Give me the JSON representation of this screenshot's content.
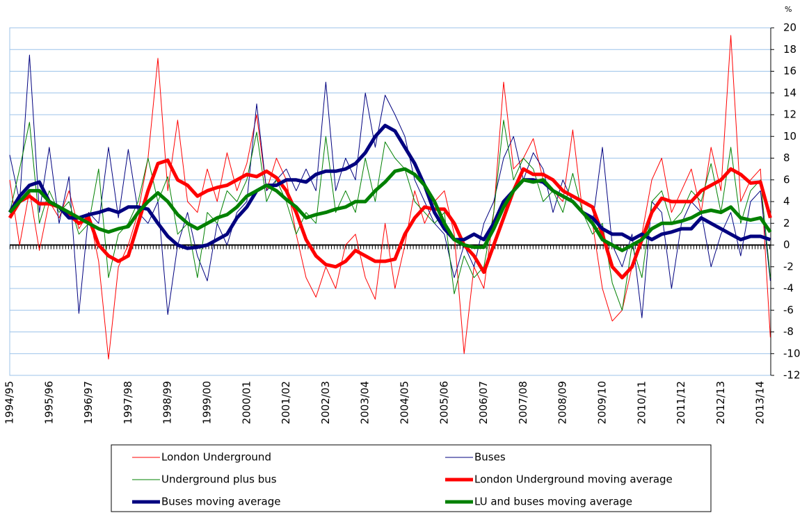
{
  "chart_data": {
    "type": "line",
    "y_unit": "%",
    "categories": [
      "1994/95",
      null,
      null,
      null,
      "1995/96",
      null,
      null,
      null,
      "1996/97",
      null,
      null,
      null,
      "1997/98",
      null,
      null,
      null,
      "1998/99",
      null,
      null,
      null,
      "1999/00",
      null,
      null,
      null,
      "2000/01",
      null,
      null,
      null,
      "2001/02",
      null,
      null,
      null,
      "2002/03",
      null,
      null,
      null,
      "2003/04",
      null,
      null,
      null,
      "2004/05",
      null,
      null,
      null,
      "2005/06",
      null,
      null,
      null,
      "2006/07",
      null,
      null,
      null,
      "2007/08",
      null,
      null,
      null,
      "2008/09",
      null,
      null,
      null,
      "2009/10",
      null,
      null,
      null,
      "2010/11",
      null,
      null,
      null,
      "2011/12",
      null,
      null,
      null,
      "2012/13",
      null,
      null,
      null,
      "2013/14",
      null
    ],
    "ylim": [
      -12,
      20
    ],
    "yticks": [
      -12,
      -10,
      -8,
      -6,
      -4,
      -2,
      0,
      2,
      4,
      6,
      8,
      10,
      12,
      14,
      16,
      18,
      20
    ],
    "grid": true,
    "series": [
      {
        "name": "London Underground",
        "color": "#ff0000",
        "line_width": 1,
        "values": [
          6,
          0,
          5,
          -0.5,
          4,
          2.5,
          5,
          1.5,
          3,
          -1.5,
          -10.5,
          -2,
          0,
          3,
          8,
          17.2,
          5,
          11.5,
          4,
          3,
          7,
          4,
          8.5,
          5,
          7.5,
          12,
          5,
          8,
          6,
          1,
          -3,
          -4.8,
          -2,
          -4,
          0,
          1,
          -3,
          -5,
          2,
          -4,
          0,
          5,
          2,
          4,
          5,
          1,
          -10,
          -2,
          -4,
          3,
          15,
          7,
          8,
          9.8,
          6,
          5,
          4,
          10.6,
          3,
          2,
          -4,
          -7,
          -6,
          -2,
          1,
          6,
          8,
          3,
          5,
          7,
          3,
          9,
          5,
          19.3,
          4,
          6,
          7,
          -8.5
        ]
      },
      {
        "name": "Buses",
        "color": "#00007f",
        "line_width": 1,
        "values": [
          8.3,
          4,
          17.5,
          3,
          9,
          2,
          6.3,
          -6.3,
          3,
          2,
          9,
          2.5,
          8.8,
          3,
          2,
          4,
          -6.4,
          0,
          3,
          -1,
          -3.3,
          2,
          0,
          3,
          4,
          13,
          5,
          6,
          7,
          5,
          7,
          5,
          15,
          5,
          8,
          6,
          14,
          9,
          13.8,
          12,
          10,
          6,
          4,
          2,
          1,
          -3,
          0,
          -2,
          2,
          4,
          8,
          10,
          6,
          8.5,
          7,
          3,
          6,
          4,
          3,
          2,
          9,
          0,
          -2,
          1,
          -6.7,
          4,
          3,
          -4,
          2,
          4,
          3,
          -2,
          1,
          3,
          -1,
          4,
          5,
          -3.3
        ]
      },
      {
        "name": "Underground plus bus",
        "color": "#008000",
        "line_width": 1,
        "values": [
          3,
          7,
          11.3,
          2,
          5,
          3,
          4,
          1,
          2,
          7,
          -3,
          1,
          2,
          4,
          8,
          4,
          6.3,
          1,
          2,
          -3,
          3,
          2,
          5,
          4,
          6,
          10.4,
          4,
          6,
          4,
          1,
          3,
          2,
          10,
          3,
          5,
          3,
          8,
          4,
          9.5,
          8,
          7,
          4,
          3,
          2,
          3,
          -4.5,
          -1,
          -3,
          -2,
          3,
          11.5,
          6,
          8,
          7,
          4,
          5,
          3,
          6.6,
          3,
          1,
          2,
          -3.5,
          -6,
          0,
          -3,
          4,
          5,
          2,
          3,
          5,
          4,
          7.5,
          3,
          9,
          2,
          5,
          6,
          -3
        ]
      },
      {
        "name": "London Underground moving average",
        "color": "#ff0000",
        "line_width": 5,
        "values": [
          2.5,
          4,
          4.5,
          3.8,
          3.8,
          3.5,
          2.8,
          2,
          2.5,
          0,
          -1,
          -1.5,
          -1,
          2,
          5,
          7.5,
          7.8,
          6,
          5.5,
          4.5,
          5,
          5.3,
          5.5,
          6,
          6.5,
          6.3,
          6.8,
          6.2,
          5,
          3,
          0.5,
          -1,
          -1.8,
          -2,
          -1.5,
          -0.5,
          -1,
          -1.5,
          -1.5,
          -1.3,
          1,
          2.5,
          3.5,
          3.3,
          3.3,
          2,
          0,
          -1,
          -2.5,
          0,
          2.5,
          5,
          7,
          6.5,
          6.5,
          6,
          5,
          4.5,
          4,
          3.5,
          1,
          -2,
          -3,
          -2,
          0.5,
          3,
          4.3,
          4,
          4,
          4,
          5,
          5.5,
          6,
          7,
          6.5,
          5.7,
          5.8,
          2.5
        ]
      },
      {
        "name": "Buses moving average",
        "color": "#00007f",
        "line_width": 5,
        "values": [
          3,
          4.5,
          5.5,
          5.8,
          4,
          3.5,
          2.5,
          2.5,
          2.8,
          3,
          3.3,
          3,
          3.5,
          3.5,
          3.3,
          2,
          0.8,
          0,
          -0.3,
          -0.2,
          0,
          0.5,
          1,
          2.5,
          3.5,
          5,
          5.5,
          5.5,
          6,
          6,
          5.8,
          6.5,
          6.8,
          6.8,
          7,
          7.5,
          8.5,
          10,
          11,
          10.5,
          9,
          7.5,
          5.5,
          3,
          1.5,
          0.5,
          0.5,
          1,
          0.5,
          2,
          4,
          5,
          6,
          6,
          5.8,
          5,
          4.5,
          4,
          3,
          2.5,
          1.5,
          1,
          1,
          0.5,
          1,
          0.5,
          1,
          1.2,
          1.5,
          1.5,
          2.5,
          2,
          1.5,
          1,
          0.5,
          0.8,
          0.8,
          0.5
        ]
      },
      {
        "name": "LU and buses moving average",
        "color": "#008000",
        "line_width": 5,
        "values": [
          3,
          4,
          5,
          5,
          4,
          3.5,
          3,
          2.5,
          2,
          1.5,
          1.2,
          1.5,
          1.7,
          3,
          4,
          4.8,
          4,
          2.8,
          2,
          1.5,
          2,
          2.5,
          2.8,
          3.5,
          4.5,
          5,
          5.5,
          5,
          4.2,
          3.5,
          2.5,
          2.8,
          3,
          3.3,
          3.5,
          4,
          4,
          5,
          5.8,
          6.8,
          7,
          6.5,
          5.5,
          4,
          2,
          0.5,
          0,
          -0.2,
          -0.2,
          1.5,
          3.5,
          5,
          6,
          5.8,
          6,
          5,
          4.5,
          4,
          3,
          2,
          0.5,
          0,
          -0.5,
          0,
          0.5,
          1.5,
          2,
          2,
          2.2,
          2.5,
          3,
          3.2,
          3,
          3.5,
          2.5,
          2.3,
          2.5,
          1.2
        ]
      }
    ]
  }
}
